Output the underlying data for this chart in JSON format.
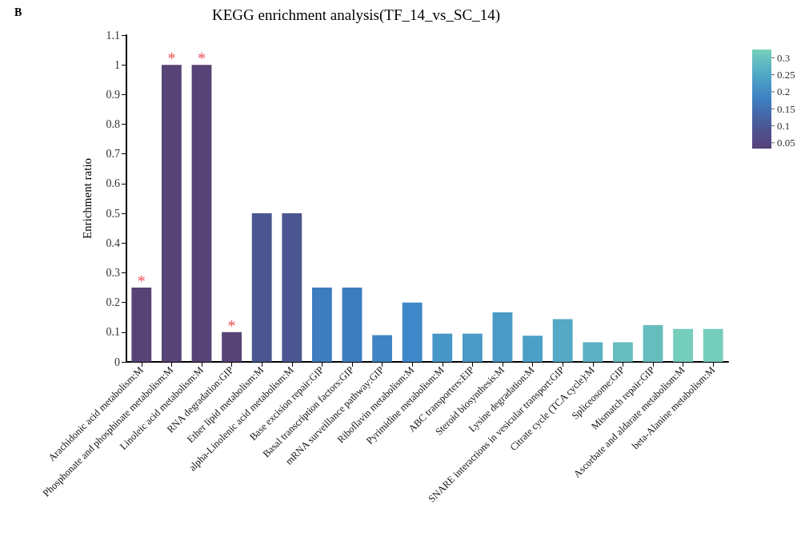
{
  "chart_data": {
    "type": "bar",
    "title": "KEGG enrichment analysis(TF_14_vs_SC_14)",
    "ylabel": "Enrichment ratio",
    "categories": [
      "Arachidonic acid metabolism:M",
      "Phosphonate and phosphinate metabolism:M",
      "Linoleic acid metabolism:M",
      "RNA degradation:GIP",
      "Ether lipid metabolism:M",
      "alpha-Linolenic acid metabolism:M",
      "Base excision repair:GIP",
      "Basal transcription factors:GIP",
      "mRNA surveillance pathway:GIP",
      "Riboflavin metabolism:M",
      "Pyrimidine metabolism:M",
      "ABC transporters:EIP",
      "Steroid biosynthesis:M",
      "Lysine degradation:M",
      "SNARE interactions in vesicular transport:GIP",
      "Citrate cycle (TCA cycle):M",
      "Spliceosome:GIP",
      "Mismatch repair:GIP",
      "Ascorbate and aldarate metabolism:M",
      "beta-Alanine metabolism:M"
    ],
    "values": [
      0.25,
      1,
      1,
      0.1,
      0.5,
      0.5,
      0.25,
      0.25,
      0.09,
      0.2,
      0.095,
      0.095,
      0.167,
      0.088,
      0.144,
      0.066,
      0.066,
      0.124,
      0.111,
      0.111
    ],
    "colors": [
      "#574375",
      "#574375",
      "#574375",
      "#574375",
      "#4b5690",
      "#4b5690",
      "#3d7dbf",
      "#3d7dbf",
      "#3f85c6",
      "#3f88c9",
      "#4796c8",
      "#4a9ac6",
      "#4a9ac6",
      "#4ba0c6",
      "#55a9c4",
      "#5cb1c2",
      "#66bdbd",
      "#66bdbd",
      "#75cdbc",
      "#75cdbc"
    ],
    "ylim": [
      0,
      1.1
    ],
    "yticks": [
      0,
      0.1,
      0.2,
      0.3,
      0.4,
      0.5,
      0.6,
      0.7,
      0.8,
      0.9,
      1,
      1.1
    ],
    "clim": [
      0.033,
      0.324
    ],
    "cticks": [
      0.05,
      0.1,
      0.15,
      0.2,
      0.25,
      0.3
    ],
    "grid": false,
    "annotations": [
      "B",
      {
        "text": "*",
        "x": "Arachidonic acid metabolism:M",
        "y": 0.25
      },
      {
        "text": "*",
        "x": "Phosphonate and phosphinate metabolism:M",
        "y": 1
      },
      {
        "text": "*",
        "x": "Linoleic acid metabolism:M",
        "y": 1
      },
      {
        "text": "*",
        "x": "RNA degradation:GIP",
        "y": 0.1
      }
    ]
  }
}
